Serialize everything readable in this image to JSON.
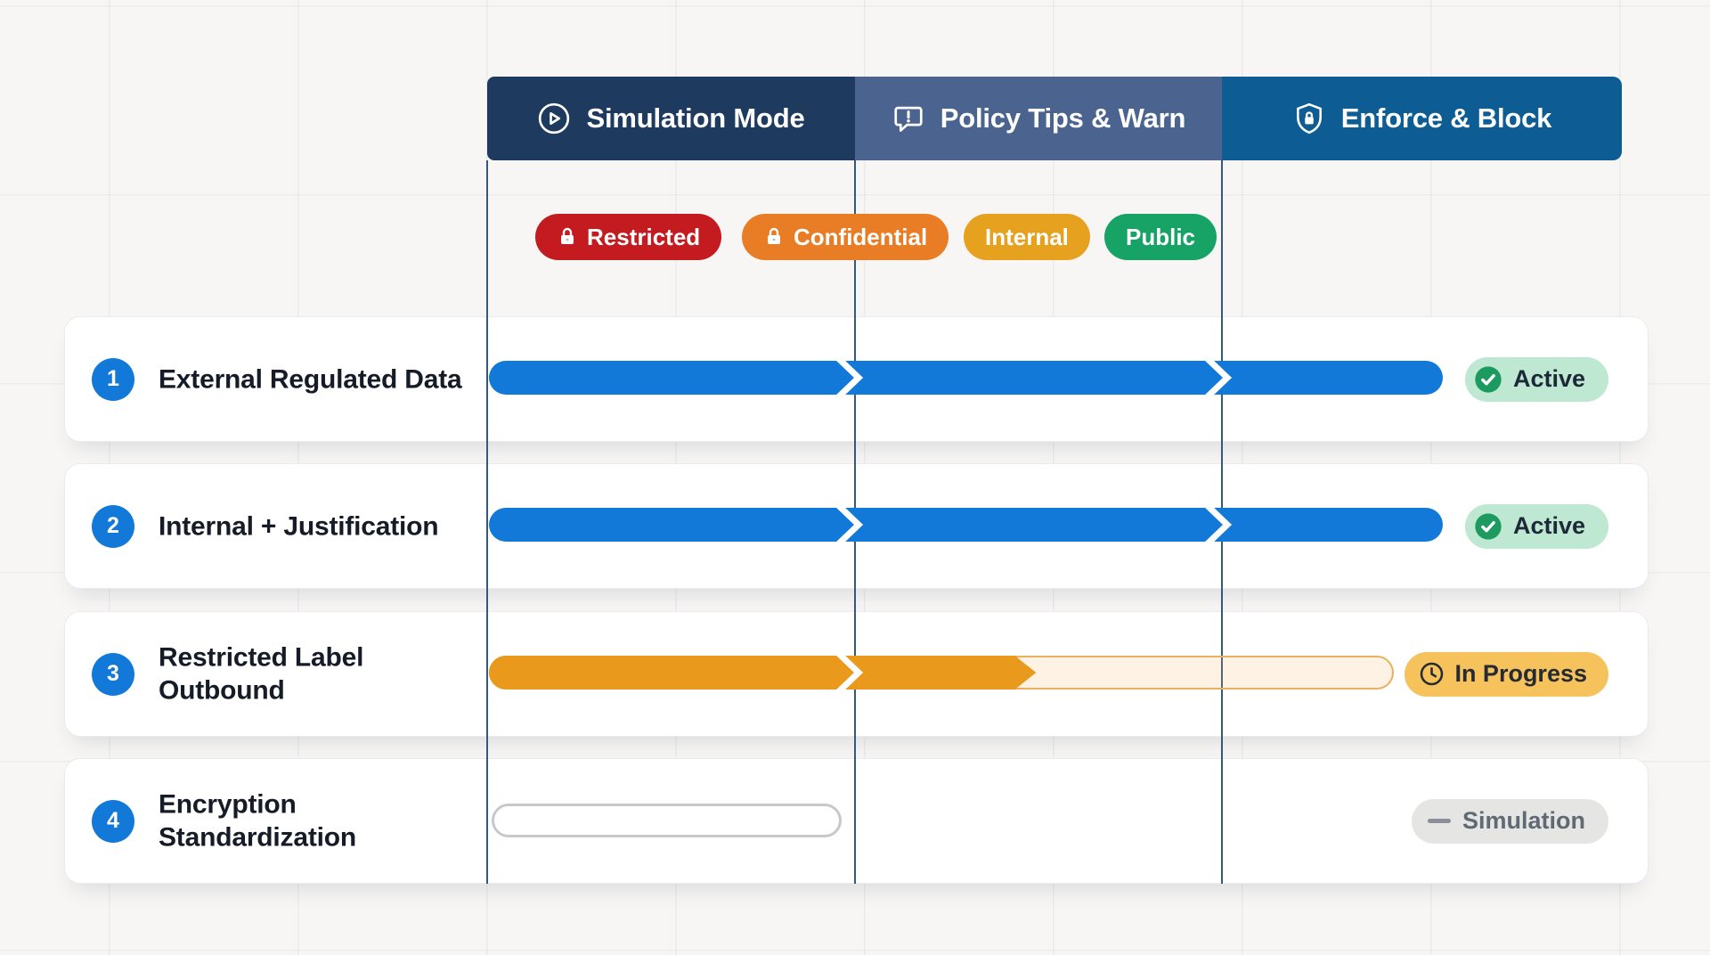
{
  "header": {
    "phases": [
      {
        "label": "Simulation Mode",
        "icon": "play-circle-icon",
        "bg": "#1e3a5e"
      },
      {
        "label": "Policy Tips & Warn",
        "icon": "alert-bubble-icon",
        "bg": "#4a648f"
      },
      {
        "label": "Enforce & Block",
        "icon": "shield-lock-icon",
        "bg": "#0d5c93"
      }
    ]
  },
  "sensitivity_labels": [
    {
      "text": "Restricted",
      "bg": "#c31b1f",
      "lock": true
    },
    {
      "text": "Confidential",
      "bg": "#e87d26",
      "lock": true
    },
    {
      "text": "Internal",
      "bg": "#e6a21f",
      "lock": false
    },
    {
      "text": "Public",
      "bg": "#17a266",
      "lock": false
    }
  ],
  "rows": [
    {
      "number": "1",
      "title": "External Regulated Data",
      "status": {
        "label": "Active",
        "type": "active",
        "bg": "#bee8d1",
        "fg": "#1d2939",
        "icon": "check-circle-icon",
        "icon_color": "#1d9a5f"
      },
      "bar": {
        "type": "solid",
        "color": "#1279d8",
        "start_pct": 0,
        "end_pct": 84.2,
        "chevrons_pct": [
          31.7,
          64.2
        ]
      }
    },
    {
      "number": "2",
      "title": "Internal + Justification",
      "status": {
        "label": "Active",
        "type": "active",
        "bg": "#bee8d1",
        "fg": "#1d2939",
        "icon": "check-circle-icon",
        "icon_color": "#1d9a5f"
      },
      "bar": {
        "type": "solid",
        "color": "#1279d8",
        "start_pct": 0,
        "end_pct": 84.2,
        "chevrons_pct": [
          31.7,
          64.2
        ]
      }
    },
    {
      "number": "3",
      "title": "Restricted Label Outbound",
      "status": {
        "label": "In Progress",
        "type": "in-progress",
        "bg": "#f6c25c",
        "fg": "#252a33",
        "icon": "clock-icon",
        "icon_color": "#252a33"
      },
      "bar": {
        "type": "partial",
        "color": "#e99a1d",
        "start_pct": 0,
        "solid_end_pct": 48.3,
        "track_end_pct": 79.9,
        "track_bg": "rgba(240,173,78,0.16)",
        "track_border": "#eab05e",
        "chevrons_pct": [
          31.7
        ]
      }
    },
    {
      "number": "4",
      "title": "Encryption Standardization",
      "status": {
        "label": "Simulation",
        "type": "simulation",
        "bg": "#e5e5e3",
        "fg": "#606a75",
        "icon": "dash-icon",
        "icon_color": "#8a9099"
      },
      "bar": {
        "type": "outline",
        "start_pct": 0.2,
        "end_pct": 31.1,
        "outline_color": "#c7c7cc"
      }
    }
  ]
}
